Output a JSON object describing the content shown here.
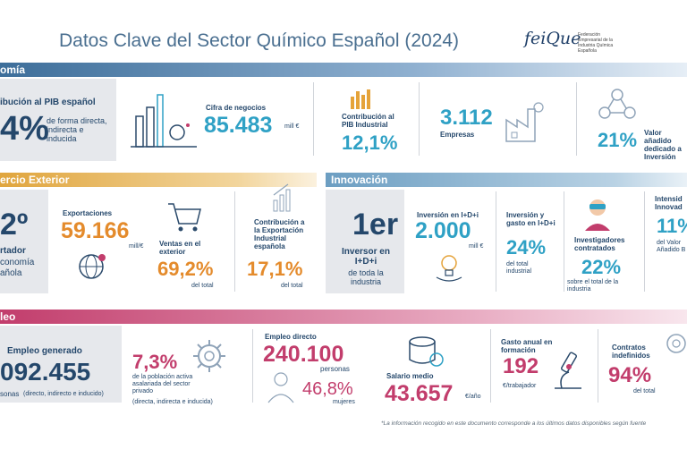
{
  "title": "Datos Clave del Sector Químico Español (2024)",
  "logo": {
    "word": "feiQue",
    "sub": "Federación Empresarial de la Industria Química Española"
  },
  "sections": {
    "economia": "omía",
    "comercio": "ercio Exterior",
    "innovacion": "Innovación",
    "empleo": "leo"
  },
  "economia": {
    "pib_label": "ibución al PIB español",
    "pib_value": "4%",
    "pib_desc": "de forma directa, indirecta e inducida",
    "cifra_label": "Cifra de negocios",
    "cifra_value": "85.483",
    "cifra_unit": "mill €",
    "pib_ind_label": "Contribución al PIB Industrial",
    "pib_ind_value": "12,1%",
    "empresas_value": "3.112",
    "empresas_label": "Empresas",
    "inversion_value": "21%",
    "inversion_label": "Valor añadido dedicado a Inversión"
  },
  "comercio": {
    "rank_value": "2º",
    "rank_desc1": "rtador",
    "rank_desc2": "conomía",
    "rank_desc3": "añola",
    "export_label": "Exportaciones",
    "export_value": "59.166",
    "export_unit": "mill/€",
    "ventas_label": "Ventas en el exterior",
    "ventas_value": "69,2%",
    "ventas_unit": "del total",
    "contrib_label": "Contribución a la Exportación Industrial española",
    "contrib_value": "17,1%",
    "contrib_unit": "del total"
  },
  "innovacion": {
    "rank_value": "1er",
    "rank_desc": "Inversor en I+D+i",
    "rank_sub": "de toda la industria",
    "inv_label": "Inversión en I+D+i",
    "inv_value": "2.000",
    "inv_unit": "mill €",
    "gasto_label": "Inversión y gasto en I+D+i",
    "gasto_value": "24%",
    "gasto_unit": "del total industrial",
    "invest_label": "Investigadores contratados",
    "invest_value": "22%",
    "invest_unit": "sobre el total de la industria",
    "intens_label": "Intensid Innovad",
    "intens_value": "11%",
    "intens_unit": "del Valor Añadido B"
  },
  "empleo": {
    "gen_label": "Empleo generado",
    "gen_value": "092.455",
    "gen_desc": "sonas",
    "gen_desc2": "(directo, indirecto e inducido)",
    "pob_value": "7,3%",
    "pob_desc": "de la población activa asalariada del sector privado",
    "pob_desc2": "(directa, indirecta e inducida)",
    "directo_label": "Empleo directo",
    "directo_value": "240.100",
    "directo_unit": "personas",
    "mujeres_value": "46,8%",
    "mujeres_unit": "mujeres",
    "salario_label": "Salario medio",
    "salario_value": "43.657",
    "salario_unit": "€/año",
    "form_label": "Gasto anual en formación",
    "form_value": "192",
    "form_unit": "€/trabajador",
    "contr_label": "Contratos indefinidos",
    "contr_value": "94%",
    "contr_unit": "del total"
  },
  "footnote": "*La información recogido en este documento corresponde a los últimos datos disponibles según fuente"
}
